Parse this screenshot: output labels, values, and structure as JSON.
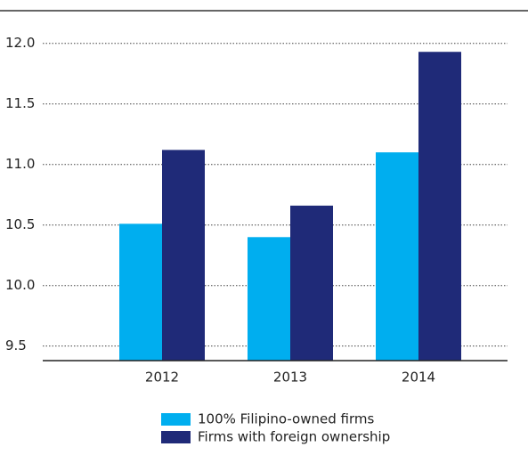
{
  "chart_data": {
    "type": "bar",
    "categories": [
      "2012",
      "2013",
      "2014"
    ],
    "series": [
      {
        "name": "100% Filipino-owned firms",
        "color": "#00aeef",
        "values": [
          10.51,
          10.4,
          11.1
        ]
      },
      {
        "name": "Firms with foreign ownership",
        "color": "#1f2a78",
        "values": [
          11.12,
          10.66,
          11.93
        ]
      }
    ],
    "ylim": [
      9.38,
      12.27
    ],
    "yticks": [
      {
        "value": 9.5,
        "label": "9.5"
      },
      {
        "value": 10,
        "label": "10.0"
      },
      10.5,
      {
        "value": 11,
        "label": "11.0"
      },
      11.5,
      {
        "value": 12,
        "label": "12.0"
      }
    ],
    "grid": true
  }
}
